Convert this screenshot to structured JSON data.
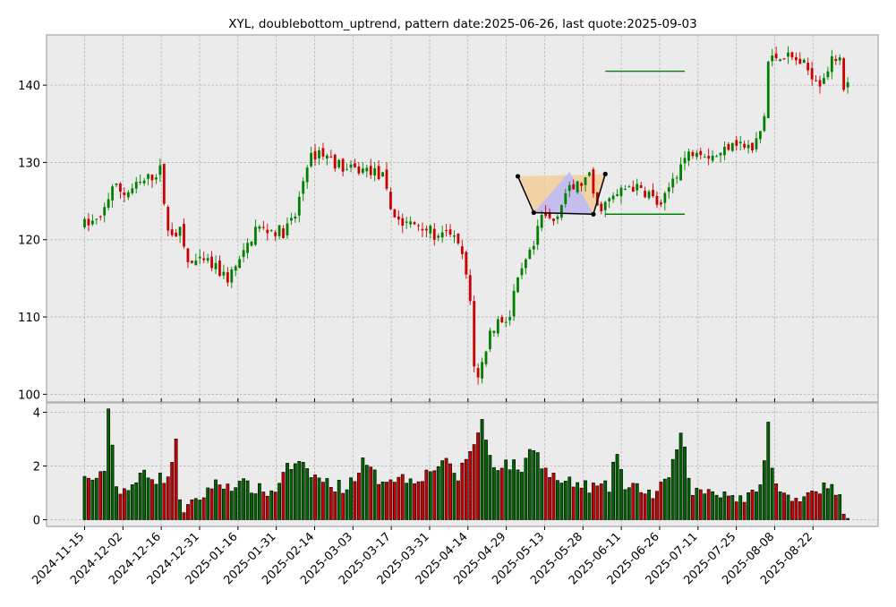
{
  "chart_data": {
    "type": "candlestick",
    "title": "XYL, doublebottom_uptrend, pattern date:2025-06-26, last quote:2025-09-03",
    "xlabel": "",
    "ylabel": "",
    "x_ticks": [
      "2024-11-15",
      "2024-12-02",
      "2024-12-16",
      "2024-12-31",
      "2025-01-16",
      "2025-01-31",
      "2025-02-14",
      "2025-03-03",
      "2025-03-17",
      "2025-03-31",
      "2025-04-14",
      "2025-04-29",
      "2025-05-13",
      "2025-05-28",
      "2025-06-11",
      "2025-06-26",
      "2025-07-11",
      "2025-07-25",
      "2025-08-08",
      "2025-08-22"
    ],
    "price_yticks": [
      100,
      110,
      120,
      130,
      140
    ],
    "price_ylim": [
      99,
      146.5
    ],
    "volume_yticks": [
      0,
      2,
      4
    ],
    "volume_ylim": [
      -0.25,
      4.35
    ],
    "grid": true,
    "up_color": "#008000",
    "down_color": "#cc0000",
    "price_anchors": [
      [
        0,
        122
      ],
      [
        4,
        122.5
      ],
      [
        7,
        127
      ],
      [
        10,
        126
      ],
      [
        15,
        127.5
      ],
      [
        19,
        129
      ],
      [
        21,
        121
      ],
      [
        24,
        121
      ],
      [
        26,
        117
      ],
      [
        31,
        117
      ],
      [
        36,
        115
      ],
      [
        40,
        118
      ],
      [
        43,
        121.5
      ],
      [
        50,
        121
      ],
      [
        53,
        123
      ],
      [
        56,
        130
      ],
      [
        59,
        131.5
      ],
      [
        63,
        130
      ],
      [
        66,
        129
      ],
      [
        72,
        129
      ],
      [
        75,
        128
      ],
      [
        77,
        124
      ],
      [
        80,
        122
      ],
      [
        85,
        122
      ],
      [
        89,
        120
      ],
      [
        92,
        121
      ],
      [
        95,
        118
      ],
      [
        97,
        112
      ],
      [
        98,
        104
      ],
      [
        99,
        102
      ],
      [
        100,
        104
      ],
      [
        102,
        108
      ],
      [
        104,
        109.5
      ],
      [
        107,
        110
      ],
      [
        108,
        113
      ],
      [
        111,
        117
      ],
      [
        113,
        119
      ],
      [
        115,
        123
      ],
      [
        118,
        122.5
      ],
      [
        121,
        126
      ],
      [
        124,
        127
      ],
      [
        127,
        128
      ],
      [
        128,
        126
      ],
      [
        129,
        124
      ],
      [
        132,
        125
      ],
      [
        137,
        127
      ],
      [
        142,
        126
      ],
      [
        145,
        124
      ],
      [
        148,
        128
      ],
      [
        151,
        130.5
      ],
      [
        154,
        132
      ],
      [
        157,
        131
      ],
      [
        160,
        131
      ],
      [
        163,
        133
      ],
      [
        168,
        131.5
      ],
      [
        170,
        134
      ],
      [
        171,
        136
      ],
      [
        172,
        143
      ],
      [
        175,
        144
      ],
      [
        180,
        143
      ],
      [
        182,
        142
      ],
      [
        185,
        140.5
      ],
      [
        188,
        143
      ],
      [
        190,
        144
      ],
      [
        191,
        140
      ],
      [
        192,
        140
      ]
    ],
    "volume_anchors": [
      [
        0,
        1.5
      ],
      [
        5,
        1.6
      ],
      [
        6,
        4.3
      ],
      [
        8,
        1.2
      ],
      [
        12,
        1.1
      ],
      [
        15,
        1.9
      ],
      [
        18,
        1.5
      ],
      [
        21,
        1.6
      ],
      [
        23,
        2.8
      ],
      [
        24,
        0.9
      ],
      [
        25,
        0.4
      ],
      [
        28,
        0.6
      ],
      [
        32,
        1.3
      ],
      [
        36,
        1.3
      ],
      [
        40,
        1.3
      ],
      [
        44,
        1.1
      ],
      [
        48,
        1.0
      ],
      [
        50,
        1.9
      ],
      [
        54,
        2.0
      ],
      [
        58,
        1.6
      ],
      [
        62,
        1.3
      ],
      [
        66,
        1.2
      ],
      [
        70,
        2.1
      ],
      [
        74,
        1.5
      ],
      [
        78,
        1.6
      ],
      [
        82,
        1.5
      ],
      [
        86,
        1.7
      ],
      [
        90,
        2.2
      ],
      [
        94,
        1.6
      ],
      [
        97,
        2.6
      ],
      [
        99,
        3.2
      ],
      [
        100,
        3.7
      ],
      [
        101,
        2.9
      ],
      [
        103,
        2.0
      ],
      [
        106,
        2.1
      ],
      [
        110,
        1.9
      ],
      [
        113,
        2.8
      ],
      [
        116,
        1.8
      ],
      [
        120,
        1.4
      ],
      [
        124,
        1.3
      ],
      [
        128,
        1.2
      ],
      [
        132,
        1.2
      ],
      [
        134,
        2.6
      ],
      [
        136,
        1.1
      ],
      [
        140,
        1.2
      ],
      [
        143,
        0.9
      ],
      [
        146,
        1.3
      ],
      [
        150,
        3.0
      ],
      [
        151,
        2.5
      ],
      [
        153,
        1.0
      ],
      [
        157,
        1.1
      ],
      [
        161,
        1.0
      ],
      [
        165,
        0.8
      ],
      [
        169,
        0.9
      ],
      [
        171,
        2.2
      ],
      [
        172,
        3.5
      ],
      [
        173,
        1.8
      ],
      [
        175,
        1.0
      ],
      [
        178,
        0.7
      ],
      [
        181,
        1.0
      ],
      [
        185,
        1.2
      ],
      [
        189,
        1.1
      ],
      [
        192,
        0.1
      ]
    ],
    "pattern": {
      "points": [
        [
          109,
          128.2
        ],
        [
          113,
          123.5
        ],
        [
          128,
          123.3
        ],
        [
          131,
          128.5
        ]
      ],
      "resistance_level": 141.8,
      "support_level": 123.3,
      "level_range": [
        131,
        151
      ]
    }
  }
}
